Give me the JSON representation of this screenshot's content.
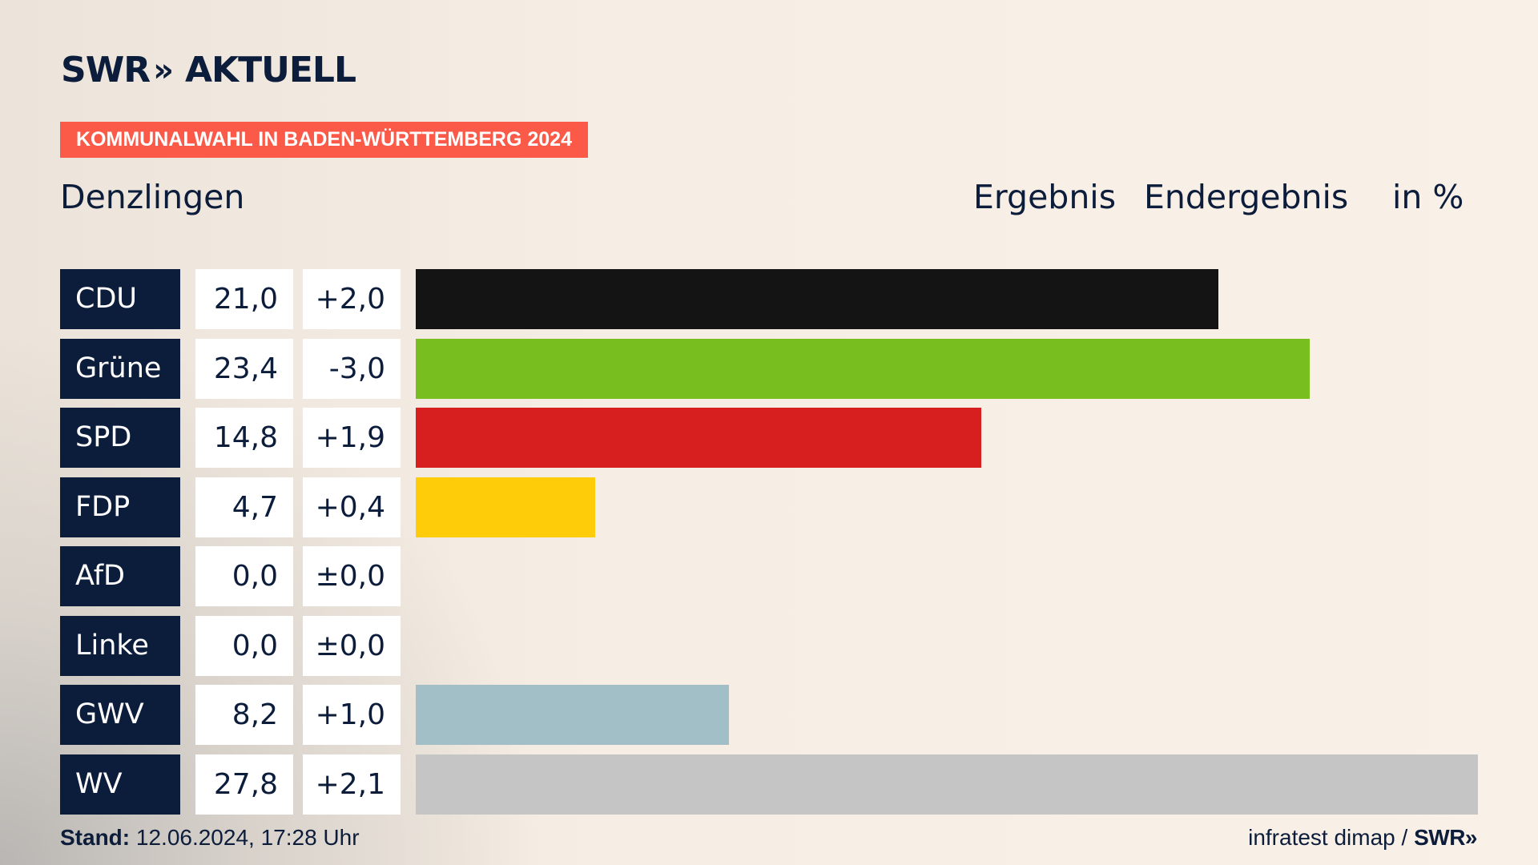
{
  "brand": {
    "logo_left": "SWR",
    "logo_chevrons": "»",
    "logo_right": "AKTUELL"
  },
  "badge": "KOMMUNALWAHL IN BADEN-WÜRTTEMBERG 2024",
  "header": {
    "place": "Denzlingen",
    "result_label": "Ergebnis",
    "status": "Endergebnis",
    "unit": "in %"
  },
  "colors": {
    "navy": "#0c1c3b",
    "badge": "#fb5a48"
  },
  "chart_data": {
    "type": "bar",
    "orientation": "horizontal",
    "title": "Denzlingen",
    "xlabel": "",
    "ylabel": "in %",
    "xlim": [
      0,
      27.8
    ],
    "categories": [
      "CDU",
      "Grüne",
      "SPD",
      "FDP",
      "AfD",
      "Linke",
      "GWV",
      "WV"
    ],
    "values": [
      21.0,
      23.4,
      14.8,
      4.7,
      0.0,
      0.0,
      8.2,
      27.8
    ],
    "value_labels": [
      "21,0",
      "23,4",
      "14,8",
      "4,7",
      "0,0",
      "0,0",
      "8,2",
      "27,8"
    ],
    "diff_labels": [
      "+2,0",
      "-3,0",
      "+1,9",
      "+0,4",
      "±0,0",
      "±0,0",
      "+1,0",
      "+2,1"
    ],
    "bar_colors": [
      "#141414",
      "#78be1e",
      "#d81f1f",
      "#ffcc0a",
      "#0090d0",
      "#b0005a",
      "#a2bec7",
      "#c5c5c5"
    ]
  },
  "footer": {
    "stand_label": "Stand:",
    "stand_value": "12.06.2024, 17:28 Uhr",
    "source": "infratest dimap /",
    "source_brand": "SWR»"
  }
}
